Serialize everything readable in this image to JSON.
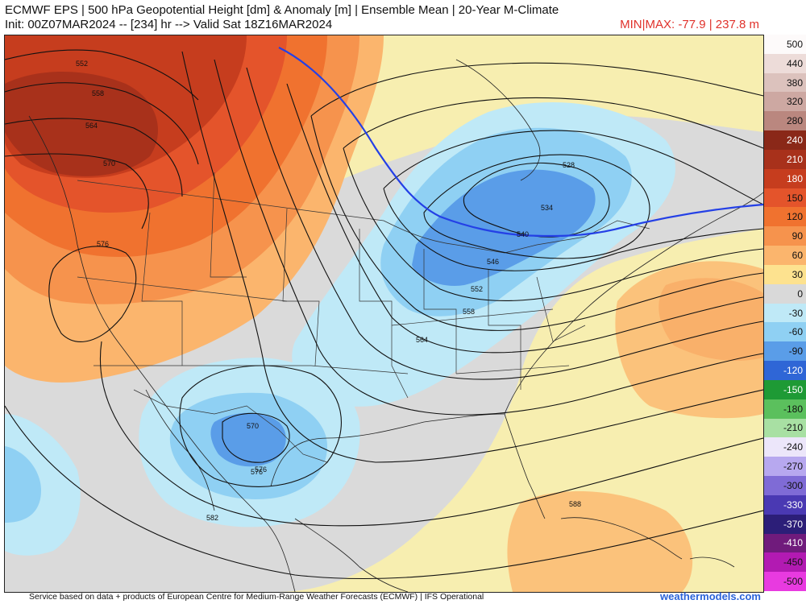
{
  "header": {
    "title": "ECMWF EPS | 500 hPa Geopotential Height [dm] & Anomaly [m] | Ensemble Mean | 20-Year M-Climate",
    "init": "Init: 00Z07MAR2024 -- [234] hr --> Valid Sat 18Z16MAR2024",
    "minmax": "MIN|MAX: -77.9 | 237.8 m"
  },
  "footer": {
    "credit": "Service based on data + products of European Centre for Medium-Range Weather Forecasts (ECMWF) | IFS Operational",
    "brand": "weathermodels.com"
  },
  "colorbar": {
    "levels": [
      {
        "label": "500",
        "color": "#fdfafa"
      },
      {
        "label": "440",
        "color": "#eddcd9"
      },
      {
        "label": "380",
        "color": "#dcc2bd"
      },
      {
        "label": "320",
        "color": "#cda8a2"
      },
      {
        "label": "280",
        "color": "#ba877f"
      },
      {
        "label": "240",
        "color": "#8a2818"
      },
      {
        "label": "210",
        "color": "#a8311b"
      },
      {
        "label": "180",
        "color": "#c63d1e"
      },
      {
        "label": "150",
        "color": "#e4542b"
      },
      {
        "label": "120",
        "color": "#f0722f"
      },
      {
        "label": "90",
        "color": "#f6934d"
      },
      {
        "label": "60",
        "color": "#fbb56d"
      },
      {
        "label": "30",
        "color": "#fde28f"
      },
      {
        "label": "0",
        "color": "#d9d9d9"
      },
      {
        "label": "-30",
        "color": "#bfe9f7"
      },
      {
        "label": "-60",
        "color": "#8fd0f3"
      },
      {
        "label": "-90",
        "color": "#5a9de8"
      },
      {
        "label": "-120",
        "color": "#2f66d6"
      },
      {
        "label": "-150",
        "color": "#1e9a35"
      },
      {
        "label": "-180",
        "color": "#5bc05d"
      },
      {
        "label": "-210",
        "color": "#a8e0a3"
      },
      {
        "label": "-240",
        "color": "#ece6fa"
      },
      {
        "label": "-270",
        "color": "#b7a8ef"
      },
      {
        "label": "-300",
        "color": "#7f6bd6"
      },
      {
        "label": "-330",
        "color": "#4a39b3"
      },
      {
        "label": "-370",
        "color": "#2c1e78"
      },
      {
        "label": "-410",
        "color": "#701b7c"
      },
      {
        "label": "-450",
        "color": "#b21ab2"
      },
      {
        "label": "-500",
        "color": "#e83ae0"
      }
    ]
  },
  "map": {
    "contour_labels": [
      "552",
      "558",
      "564",
      "570",
      "576",
      "576",
      "582",
      "588",
      "528",
      "534",
      "540",
      "546",
      "552",
      "558",
      "564",
      "570",
      "576"
    ]
  }
}
